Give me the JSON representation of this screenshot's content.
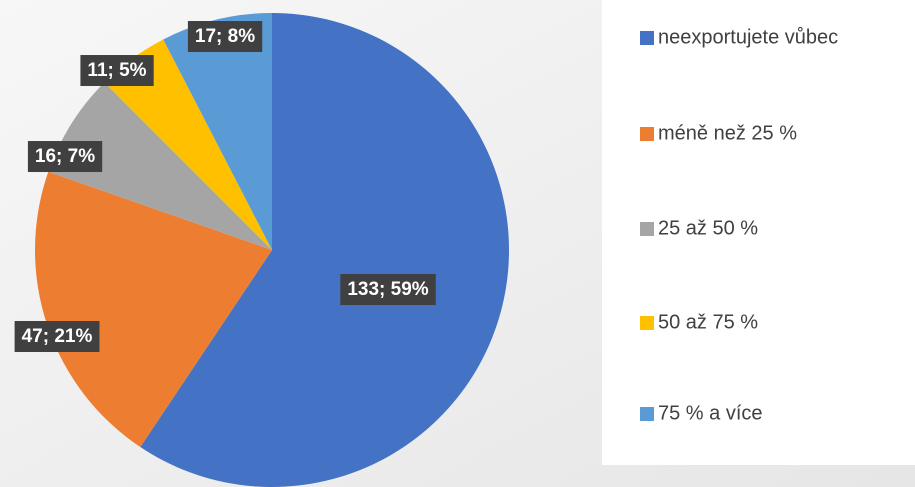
{
  "chart_data": {
    "type": "pie",
    "categories": [
      "neexportujete vůbec",
      "méně než 25 %",
      "25 až 50 %",
      "50 až 75 %",
      "75 % a více"
    ],
    "values": [
      133,
      47,
      16,
      11,
      17
    ],
    "value_labels": [
      "133; 59%",
      "47; 21%",
      "16; 7%",
      "11; 5%",
      "17; 8%"
    ],
    "colors": [
      "#4472c4",
      "#ed7d31",
      "#a5a5a5",
      "#ffc000",
      "#5b9bd5"
    ],
    "legend": "right"
  }
}
